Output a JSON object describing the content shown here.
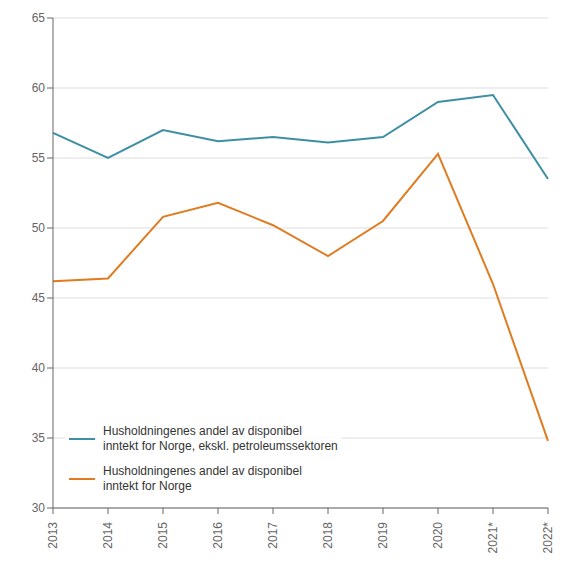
{
  "chart_data": {
    "type": "line",
    "categories": [
      "2013",
      "2014",
      "2015",
      "2016",
      "2017",
      "2018",
      "2019",
      "2020",
      "2021*",
      "2022*"
    ],
    "series": [
      {
        "name": "Husholdningenes andel av disponibel\ninntekt for Norge, ekskl. petroleumssektoren",
        "color": "#3E8FA3",
        "values": [
          56.8,
          55.0,
          57.0,
          56.2,
          56.5,
          56.1,
          56.5,
          59.0,
          59.5,
          53.5
        ]
      },
      {
        "name": "Husholdningenes andel av disponibel\ninntekt for Norge",
        "color": "#E07B20",
        "values": [
          46.2,
          46.4,
          50.8,
          51.8,
          50.2,
          48.0,
          50.5,
          55.3,
          46.0,
          34.8
        ]
      }
    ],
    "ylim": [
      30,
      65
    ],
    "yticks": [
      30,
      35,
      40,
      45,
      50,
      55,
      60,
      65
    ],
    "grid": true,
    "legend": "lower left"
  }
}
